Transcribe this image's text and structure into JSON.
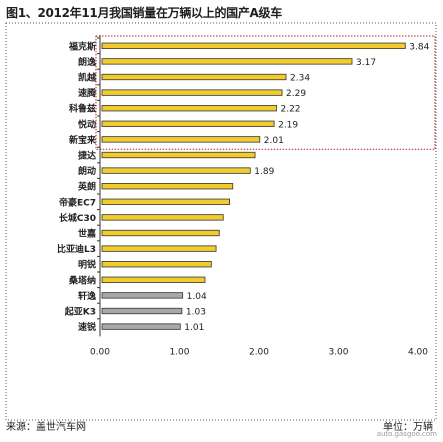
{
  "title": "图1、2012年11月我国销量在万辆以上的国产A级车",
  "chart_data": {
    "type": "bar",
    "orientation": "horizontal",
    "categories": [
      "福克斯",
      "朗逸",
      "凯越",
      "速腾",
      "科鲁兹",
      "悦动",
      "新宝来",
      "捷达",
      "朗动",
      "英朗",
      "帝豪EC7",
      "长城C30",
      "世嘉",
      "比亚迪L3",
      "明锐",
      "桑塔纳",
      "轩逸",
      "起亚K3",
      "速锐"
    ],
    "values": [
      3.84,
      3.17,
      2.34,
      2.29,
      2.22,
      2.19,
      2.01,
      1.95,
      1.89,
      1.67,
      1.63,
      1.55,
      1.5,
      1.46,
      1.4,
      1.32,
      1.04,
      1.03,
      1.01
    ],
    "value_labels": [
      "3.84",
      "3.17",
      "2.34",
      "2.29",
      "2.22",
      "2.19",
      "2.01",
      "",
      "1.89",
      "",
      "",
      "",
      "",
      "",
      "",
      "",
      "1.04",
      "1.03",
      "1.01"
    ],
    "xlim": [
      0,
      4
    ],
    "xticks": [
      "0.00",
      "1.00",
      "2.00",
      "3.00",
      "4.00"
    ],
    "xlabel": "",
    "ylabel": "",
    "grid": false,
    "bar_color": "#f1cc2c",
    "bar_color_low": "#a8a8a8",
    "highlight_box_color": "#b32222",
    "highlight_top_n": 7
  },
  "footer": {
    "source": "来源：盖世汽车网",
    "unit": "单位：万辆"
  },
  "watermark": "auto.gasgoo.com"
}
